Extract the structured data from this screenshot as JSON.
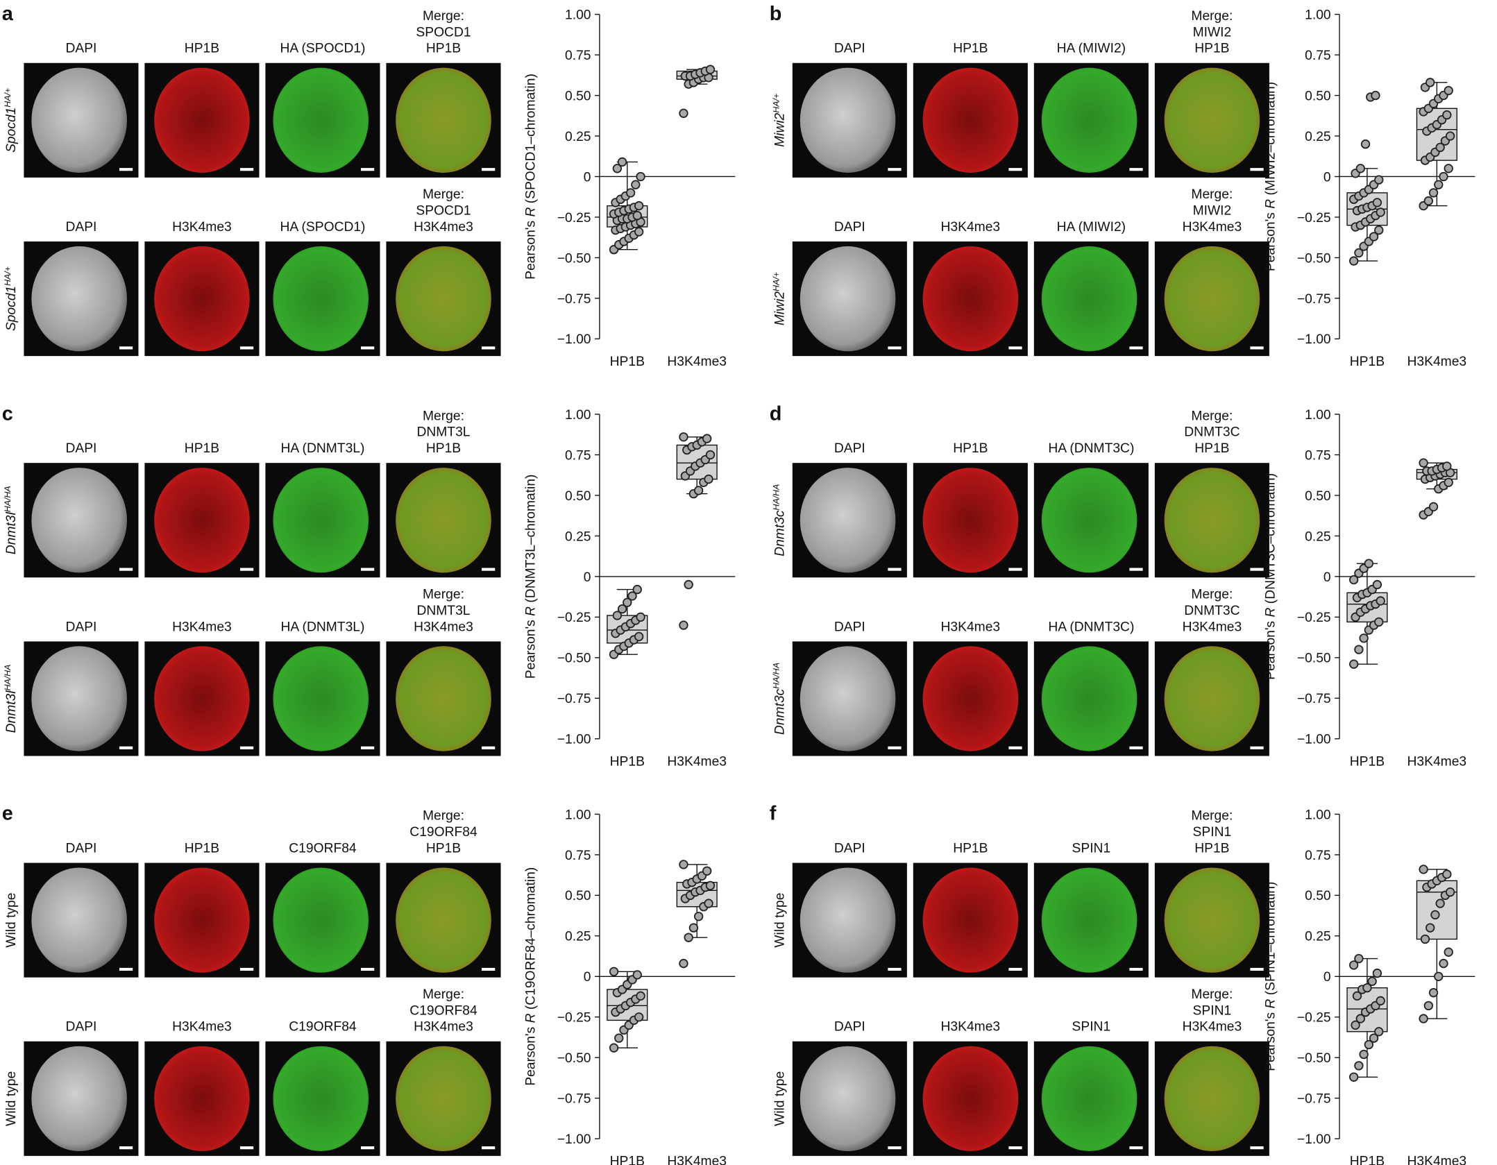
{
  "panels": [
    {
      "letter": "a",
      "rows": [
        {
          "label": "Spocd1",
          "label_sup": "HA/+",
          "headers": [
            [
              "DAPI"
            ],
            [
              "HP1B"
            ],
            [
              "HA (SPOCD1)"
            ],
            [
              "Merge:",
              "SPOCD1",
              "HP1B"
            ]
          ]
        },
        {
          "label": "Spocd1",
          "label_sup": "HA/+",
          "headers": [
            [
              "DAPI"
            ],
            [
              "H3K4me3"
            ],
            [
              "HA (SPOCD1)"
            ],
            [
              "Merge:",
              "SPOCD1",
              "H3K4me3"
            ]
          ]
        }
      ]
    },
    {
      "letter": "b",
      "rows": [
        {
          "label": "Miwi2",
          "label_sup": "HA/+",
          "headers": [
            [
              "DAPI"
            ],
            [
              "HP1B"
            ],
            [
              "HA (MIWI2)"
            ],
            [
              "Merge:",
              "MIWI2",
              "HP1B"
            ]
          ]
        },
        {
          "label": "Miwi2",
          "label_sup": "HA/+",
          "headers": [
            [
              "DAPI"
            ],
            [
              "H3K4me3"
            ],
            [
              "HA (MIWI2)"
            ],
            [
              "Merge:",
              "MIWI2",
              "H3K4me3"
            ]
          ]
        }
      ]
    },
    {
      "letter": "c",
      "rows": [
        {
          "label": "Dnmt3l",
          "label_sup": "HA/HA",
          "headers": [
            [
              "DAPI"
            ],
            [
              "HP1B"
            ],
            [
              "HA (DNMT3L)"
            ],
            [
              "Merge:",
              "DNMT3L",
              "HP1B"
            ]
          ]
        },
        {
          "label": "Dnmt3l",
          "label_sup": "HA/HA",
          "headers": [
            [
              "DAPI"
            ],
            [
              "H3K4me3"
            ],
            [
              "HA (DNMT3L)"
            ],
            [
              "Merge:",
              "DNMT3L",
              "H3K4me3"
            ]
          ]
        }
      ]
    },
    {
      "letter": "d",
      "rows": [
        {
          "label": "Dnmt3c",
          "label_sup": "HA/HA",
          "headers": [
            [
              "DAPI"
            ],
            [
              "HP1B"
            ],
            [
              "HA (DNMT3C)"
            ],
            [
              "Merge:",
              "DNMT3C",
              "HP1B"
            ]
          ]
        },
        {
          "label": "Dnmt3c",
          "label_sup": "HA/HA",
          "headers": [
            [
              "DAPI"
            ],
            [
              "H3K4me3"
            ],
            [
              "HA (DNMT3C)"
            ],
            [
              "Merge:",
              "DNMT3C",
              "H3K4me3"
            ]
          ]
        }
      ]
    },
    {
      "letter": "e",
      "rows": [
        {
          "label": "Wild type",
          "headers": [
            [
              "DAPI"
            ],
            [
              "HP1B"
            ],
            [
              "C19ORF84"
            ],
            [
              "Merge:",
              "C19ORF84",
              "HP1B"
            ]
          ]
        },
        {
          "label": "Wild type",
          "headers": [
            [
              "DAPI"
            ],
            [
              "H3K4me3"
            ],
            [
              "C19ORF84"
            ],
            [
              "Merge:",
              "C19ORF84",
              "H3K4me3"
            ]
          ]
        }
      ]
    },
    {
      "letter": "f",
      "rows": [
        {
          "label": "Wild type",
          "headers": [
            [
              "DAPI"
            ],
            [
              "HP1B"
            ],
            [
              "SPIN1"
            ],
            [
              "Merge:",
              "SPIN1",
              "HP1B"
            ]
          ]
        },
        {
          "label": "Wild type",
          "headers": [
            [
              "DAPI"
            ],
            [
              "H3K4me3"
            ],
            [
              "SPIN1"
            ],
            [
              "Merge:",
              "SPIN1",
              "H3K4me3"
            ]
          ]
        }
      ]
    }
  ],
  "chart_data": [
    {
      "type": "box",
      "y_label": [
        "Pearson's ",
        "R",
        " (SPOCD1–chromatin)"
      ],
      "categories": [
        "HP1B",
        "H3K4me3"
      ],
      "color": "#d4d4d4",
      "ylim": [
        -1,
        1
      ],
      "yticks": [
        {
          "value": -1,
          "label": "−1.00"
        },
        {
          "value": -0.75,
          "label": "−0.75"
        },
        {
          "value": -0.5,
          "label": "−0.50"
        },
        {
          "value": -0.25,
          "label": "−0.25"
        },
        0,
        {
          "value": 0.25,
          "label": "0.25"
        },
        {
          "value": 0.5,
          "label": "0.50"
        },
        {
          "value": 0.75,
          "label": "0.75"
        },
        {
          "value": 1,
          "label": "1.00"
        }
      ],
      "boxes": [
        {
          "whislo": -0.45,
          "q1": -0.31,
          "med": -0.25,
          "q3": -0.18,
          "whishi": 0.09,
          "points": [
            -0.45,
            -0.42,
            -0.4,
            -0.38,
            -0.36,
            -0.34,
            -0.33,
            -0.32,
            -0.31,
            -0.3,
            -0.29,
            -0.28,
            -0.27,
            -0.26,
            -0.26,
            -0.25,
            -0.24,
            -0.23,
            -0.22,
            -0.21,
            -0.2,
            -0.19,
            -0.18,
            -0.16,
            -0.14,
            -0.12,
            -0.1,
            -0.05,
            0.0,
            0.05,
            0.09
          ]
        },
        {
          "whislo": 0.57,
          "q1": 0.6,
          "med": 0.62,
          "q3": 0.65,
          "whishi": 0.66,
          "points": [
            0.39,
            0.57,
            0.58,
            0.6,
            0.61,
            0.61,
            0.62,
            0.62,
            0.63,
            0.64,
            0.65,
            0.66
          ]
        }
      ]
    },
    {
      "type": "box",
      "y_label": [
        "Pearson's ",
        "R",
        " (MIWI2–chromatin)"
      ],
      "categories": [
        "HP1B",
        "H3K4me3"
      ],
      "color": "#d4d4d4",
      "ylim": [
        -1,
        1
      ],
      "yticks": [
        {
          "value": -1,
          "label": "−1.00"
        },
        {
          "value": -0.75,
          "label": "−0.75"
        },
        {
          "value": -0.5,
          "label": "−0.50"
        },
        {
          "value": -0.25,
          "label": "−0.25"
        },
        0,
        {
          "value": 0.25,
          "label": "0.25"
        },
        {
          "value": 0.5,
          "label": "0.50"
        },
        {
          "value": 0.75,
          "label": "0.75"
        },
        {
          "value": 1,
          "label": "1.00"
        }
      ],
      "boxes": [
        {
          "whislo": -0.52,
          "q1": -0.3,
          "med": -0.2,
          "q3": -0.1,
          "whishi": 0.05,
          "points": [
            -0.52,
            -0.47,
            -0.43,
            -0.4,
            -0.37,
            -0.33,
            -0.31,
            -0.3,
            -0.28,
            -0.26,
            -0.24,
            -0.22,
            -0.21,
            -0.2,
            -0.19,
            -0.18,
            -0.16,
            -0.14,
            -0.12,
            -0.1,
            -0.08,
            -0.05,
            -0.02,
            0.02,
            0.05,
            0.2,
            0.49,
            0.5
          ]
        },
        {
          "whislo": -0.18,
          "q1": 0.1,
          "med": 0.29,
          "q3": 0.42,
          "whishi": 0.58,
          "points": [
            -0.18,
            -0.15,
            -0.1,
            -0.05,
            0.0,
            0.05,
            0.1,
            0.12,
            0.15,
            0.18,
            0.22,
            0.25,
            0.28,
            0.3,
            0.32,
            0.35,
            0.38,
            0.4,
            0.42,
            0.45,
            0.48,
            0.5,
            0.53,
            0.55,
            0.58
          ]
        }
      ]
    },
    {
      "type": "box",
      "y_label": [
        "Pearson's ",
        "R",
        " (DNMT3L–chromatin)"
      ],
      "categories": [
        "HP1B",
        "H3K4me3"
      ],
      "color": "#d4d4d4",
      "ylim": [
        -1,
        1
      ],
      "yticks": [
        {
          "value": -1,
          "label": "−1.00"
        },
        {
          "value": -0.75,
          "label": "−0.75"
        },
        {
          "value": -0.5,
          "label": "−0.50"
        },
        {
          "value": -0.25,
          "label": "−0.25"
        },
        0,
        {
          "value": 0.25,
          "label": "0.25"
        },
        {
          "value": 0.5,
          "label": "0.50"
        },
        {
          "value": 0.75,
          "label": "0.75"
        },
        {
          "value": 1,
          "label": "1.00"
        }
      ],
      "boxes": [
        {
          "whislo": -0.48,
          "q1": -0.41,
          "med": -0.33,
          "q3": -0.24,
          "whishi": -0.08,
          "points": [
            -0.48,
            -0.45,
            -0.43,
            -0.41,
            -0.39,
            -0.37,
            -0.35,
            -0.33,
            -0.31,
            -0.29,
            -0.27,
            -0.25,
            -0.24,
            -0.2,
            -0.16,
            -0.12,
            -0.08
          ]
        },
        {
          "whislo": 0.51,
          "q1": 0.6,
          "med": 0.7,
          "q3": 0.81,
          "whishi": 0.86,
          "points": [
            -0.3,
            -0.05,
            0.51,
            0.53,
            0.58,
            0.6,
            0.62,
            0.65,
            0.68,
            0.7,
            0.72,
            0.75,
            0.78,
            0.8,
            0.81,
            0.83,
            0.85,
            0.86
          ]
        }
      ]
    },
    {
      "type": "box",
      "y_label": [
        "Pearson's ",
        "R",
        " (DNMT3C–chromatin)"
      ],
      "categories": [
        "HP1B",
        "H3K4me3"
      ],
      "color": "#d4d4d4",
      "ylim": [
        -1,
        1
      ],
      "yticks": [
        {
          "value": -1,
          "label": "−1.00"
        },
        {
          "value": -0.75,
          "label": "−0.75"
        },
        {
          "value": -0.5,
          "label": "−0.50"
        },
        {
          "value": -0.25,
          "label": "−0.25"
        },
        0,
        {
          "value": 0.25,
          "label": "0.25"
        },
        {
          "value": 0.5,
          "label": "0.50"
        },
        {
          "value": 0.75,
          "label": "0.75"
        },
        {
          "value": 1,
          "label": "1.00"
        }
      ],
      "boxes": [
        {
          "whislo": -0.54,
          "q1": -0.28,
          "med": -0.17,
          "q3": -0.1,
          "whishi": 0.08,
          "points": [
            -0.54,
            -0.45,
            -0.38,
            -0.33,
            -0.3,
            -0.28,
            -0.25,
            -0.22,
            -0.2,
            -0.18,
            -0.17,
            -0.15,
            -0.13,
            -0.11,
            -0.1,
            -0.08,
            -0.05,
            -0.02,
            0.02,
            0.05,
            0.08
          ]
        },
        {
          "whislo": 0.54,
          "q1": 0.6,
          "med": 0.64,
          "q3": 0.66,
          "whishi": 0.7,
          "points": [
            0.38,
            0.4,
            0.43,
            0.54,
            0.56,
            0.58,
            0.6,
            0.61,
            0.62,
            0.63,
            0.64,
            0.64,
            0.65,
            0.65,
            0.66,
            0.67,
            0.68,
            0.7
          ]
        }
      ]
    },
    {
      "type": "box",
      "y_label": [
        "Pearson's ",
        "R",
        " (C19ORF84–chromatin)"
      ],
      "categories": [
        "HP1B",
        "H3K4me3"
      ],
      "color": "#d4d4d4",
      "ylim": [
        -1,
        1
      ],
      "yticks": [
        {
          "value": -1,
          "label": "−1.00"
        },
        {
          "value": -0.75,
          "label": "−0.75"
        },
        {
          "value": -0.5,
          "label": "−0.50"
        },
        {
          "value": -0.25,
          "label": "−0.25"
        },
        0,
        {
          "value": 0.25,
          "label": "0.25"
        },
        {
          "value": 0.5,
          "label": "0.50"
        },
        {
          "value": 0.75,
          "label": "0.75"
        },
        {
          "value": 1,
          "label": "1.00"
        }
      ],
      "boxes": [
        {
          "whislo": -0.44,
          "q1": -0.27,
          "med": -0.18,
          "q3": -0.08,
          "whishi": 0.03,
          "points": [
            -0.44,
            -0.38,
            -0.33,
            -0.3,
            -0.27,
            -0.25,
            -0.22,
            -0.2,
            -0.18,
            -0.16,
            -0.14,
            -0.12,
            -0.1,
            -0.08,
            -0.05,
            -0.02,
            0.01,
            0.03
          ]
        },
        {
          "whislo": 0.24,
          "q1": 0.43,
          "med": 0.53,
          "q3": 0.58,
          "whishi": 0.69,
          "points": [
            0.08,
            0.24,
            0.3,
            0.37,
            0.43,
            0.45,
            0.48,
            0.5,
            0.52,
            0.53,
            0.55,
            0.56,
            0.57,
            0.58,
            0.6,
            0.62,
            0.65,
            0.69
          ]
        }
      ]
    },
    {
      "type": "box",
      "y_label": [
        "Pearson's ",
        "R",
        " (SPIN1–chromatin)"
      ],
      "categories": [
        "HP1B",
        "H3K4me3"
      ],
      "color": "#d4d4d4",
      "ylim": [
        -1,
        1
      ],
      "yticks": [
        {
          "value": -1,
          "label": "−1.00"
        },
        {
          "value": -0.75,
          "label": "−0.75"
        },
        {
          "value": -0.5,
          "label": "−0.50"
        },
        {
          "value": -0.25,
          "label": "−0.25"
        },
        0,
        {
          "value": 0.25,
          "label": "0.25"
        },
        {
          "value": 0.5,
          "label": "0.50"
        },
        {
          "value": 0.75,
          "label": "0.75"
        },
        {
          "value": 1,
          "label": "1.00"
        }
      ],
      "boxes": [
        {
          "whislo": -0.62,
          "q1": -0.34,
          "med": -0.2,
          "q3": -0.07,
          "whishi": 0.11,
          "points": [
            -0.62,
            -0.55,
            -0.48,
            -0.42,
            -0.38,
            -0.34,
            -0.3,
            -0.26,
            -0.22,
            -0.2,
            -0.18,
            -0.15,
            -0.12,
            -0.08,
            -0.07,
            -0.03,
            0.02,
            0.07,
            0.11
          ]
        },
        {
          "whislo": -0.26,
          "q1": 0.23,
          "med": 0.52,
          "q3": 0.59,
          "whishi": 0.66,
          "points": [
            -0.26,
            -0.18,
            -0.1,
            0.0,
            0.08,
            0.15,
            0.23,
            0.3,
            0.38,
            0.45,
            0.5,
            0.52,
            0.55,
            0.57,
            0.59,
            0.61,
            0.63,
            0.66
          ]
        }
      ]
    }
  ]
}
